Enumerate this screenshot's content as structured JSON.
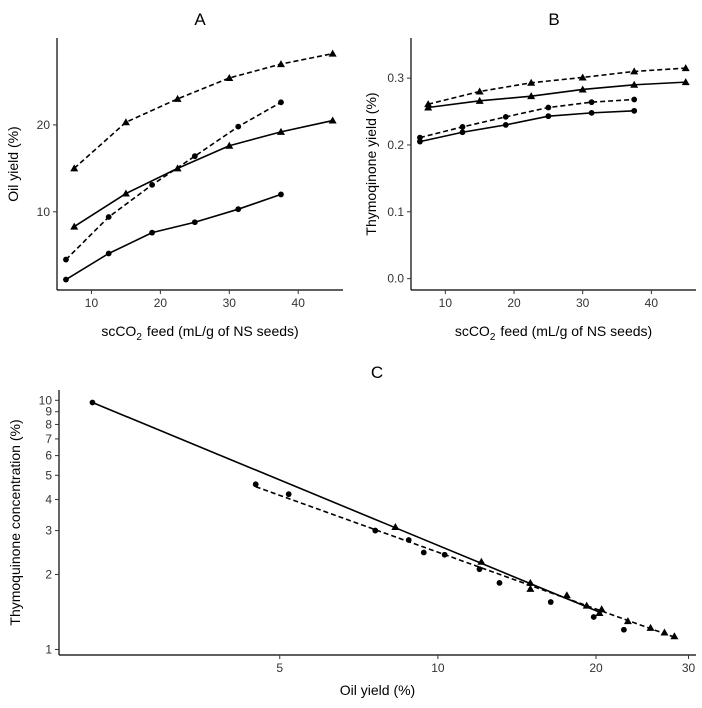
{
  "chart_data": [
    {
      "panel": "A",
      "type": "line",
      "title": "A",
      "xlabel": "scCO₂ feed (mL/g of NS seeds)",
      "ylabel": "Oil yield (%)",
      "xlim": [
        5,
        46.5
      ],
      "ylim": [
        1,
        30
      ],
      "xticks": [
        10,
        20,
        30,
        40
      ],
      "yticks": [
        10,
        20
      ],
      "series": [
        {
          "name": "circle-solid",
          "marker": "circle",
          "dash": "solid",
          "x": [
            6.3,
            12.5,
            18.8,
            25,
            31.3,
            37.5
          ],
          "y": [
            2.2,
            5.2,
            7.6,
            8.8,
            10.3,
            12.0
          ]
        },
        {
          "name": "circle-dashed",
          "marker": "circle",
          "dash": "dashed",
          "x": [
            6.3,
            12.5,
            18.8,
            25,
            31.3,
            37.5
          ],
          "y": [
            4.5,
            9.4,
            13.1,
            16.4,
            19.8,
            22.6
          ]
        },
        {
          "name": "triangle-solid",
          "marker": "triangle",
          "dash": "solid",
          "x": [
            7.5,
            15,
            22.5,
            30,
            37.5,
            45
          ],
          "y": [
            8.3,
            12.1,
            15.0,
            17.6,
            19.2,
            20.5
          ]
        },
        {
          "name": "triangle-dashed",
          "marker": "triangle",
          "dash": "dashed",
          "x": [
            7.5,
            15,
            22.5,
            30,
            37.5,
            45
          ],
          "y": [
            15.0,
            20.3,
            23.0,
            25.4,
            27.0,
            28.2
          ]
        }
      ]
    },
    {
      "panel": "B",
      "type": "line",
      "title": "B",
      "xlabel": "scCO₂ feed (mL/g of NS seeds)",
      "ylabel": "Thymoqinone yield (%)",
      "xlim": [
        5,
        46.5
      ],
      "ylim": [
        -0.017,
        0.36
      ],
      "xticks": [
        10,
        20,
        30,
        40
      ],
      "yticks": [
        0.0,
        0.1,
        0.2,
        0.3
      ],
      "ytick_labels": [
        "0.0",
        "0.1",
        "0.2",
        "0.3"
      ],
      "series": [
        {
          "name": "circle-solid",
          "marker": "circle",
          "dash": "solid",
          "x": [
            6.3,
            12.5,
            18.8,
            25,
            31.3,
            37.5
          ],
          "y": [
            0.205,
            0.219,
            0.23,
            0.243,
            0.248,
            0.251
          ]
        },
        {
          "name": "circle-dashed",
          "marker": "circle",
          "dash": "dashed",
          "x": [
            6.3,
            12.5,
            18.8,
            25,
            31.3,
            37.5
          ],
          "y": [
            0.211,
            0.227,
            0.242,
            0.256,
            0.264,
            0.268
          ]
        },
        {
          "name": "triangle-solid",
          "marker": "triangle",
          "dash": "solid",
          "x": [
            7.5,
            15,
            22.5,
            30,
            37.5,
            45
          ],
          "y": [
            0.256,
            0.266,
            0.273,
            0.283,
            0.29,
            0.294
          ]
        },
        {
          "name": "triangle-dashed",
          "marker": "triangle",
          "dash": "dashed",
          "x": [
            7.5,
            15,
            22.5,
            30,
            37.5,
            45
          ],
          "y": [
            0.261,
            0.28,
            0.293,
            0.301,
            0.31,
            0.315
          ]
        }
      ]
    },
    {
      "panel": "C",
      "type": "scatter",
      "title": "C",
      "xlabel": "Oil yield (%)",
      "ylabel": "Thymoquinone concentration (%)",
      "xscale": "log",
      "yscale": "log",
      "xlim": [
        1.9,
        31
      ],
      "ylim": [
        0.95,
        11
      ],
      "xticks": [
        5,
        10,
        20,
        30
      ],
      "yticks": [
        1,
        2,
        3,
        4,
        5,
        6,
        7,
        8,
        9,
        10
      ],
      "series": [
        {
          "name": "circle-solid",
          "marker": "circle",
          "dash": "solid",
          "x": [
            2.2,
            5.2,
            7.6,
            8.8,
            10.3,
            12.0
          ],
          "y": [
            9.8,
            4.2,
            3.0,
            2.75,
            2.4,
            2.1
          ]
        },
        {
          "name": "circle-dashed",
          "marker": "circle",
          "dash": "dashed",
          "x": [
            4.5,
            9.4,
            13.1,
            16.4,
            19.8,
            22.6
          ],
          "y": [
            4.6,
            2.45,
            1.85,
            1.55,
            1.35,
            1.2
          ]
        },
        {
          "name": "triangle-solid",
          "marker": "triangle",
          "dash": "solid",
          "x": [
            8.3,
            12.1,
            15.0,
            17.6,
            19.2,
            20.5
          ],
          "y": [
            3.1,
            2.25,
            1.85,
            1.65,
            1.5,
            1.45
          ]
        },
        {
          "name": "triangle-dashed",
          "marker": "triangle",
          "dash": "dashed",
          "x": [
            15.0,
            20.3,
            23.0,
            25.4,
            27.0,
            28.2
          ],
          "y": [
            1.75,
            1.4,
            1.3,
            1.22,
            1.17,
            1.13
          ]
        }
      ],
      "fit_lines": [
        {
          "name": "fit-solid",
          "dash": "solid",
          "x": [
            2.2,
            20.5
          ],
          "y": [
            9.8,
            1.4
          ]
        },
        {
          "name": "fit-dashed",
          "dash": "dashed",
          "x": [
            4.5,
            28.2
          ],
          "y": [
            4.5,
            1.12
          ]
        }
      ]
    }
  ]
}
